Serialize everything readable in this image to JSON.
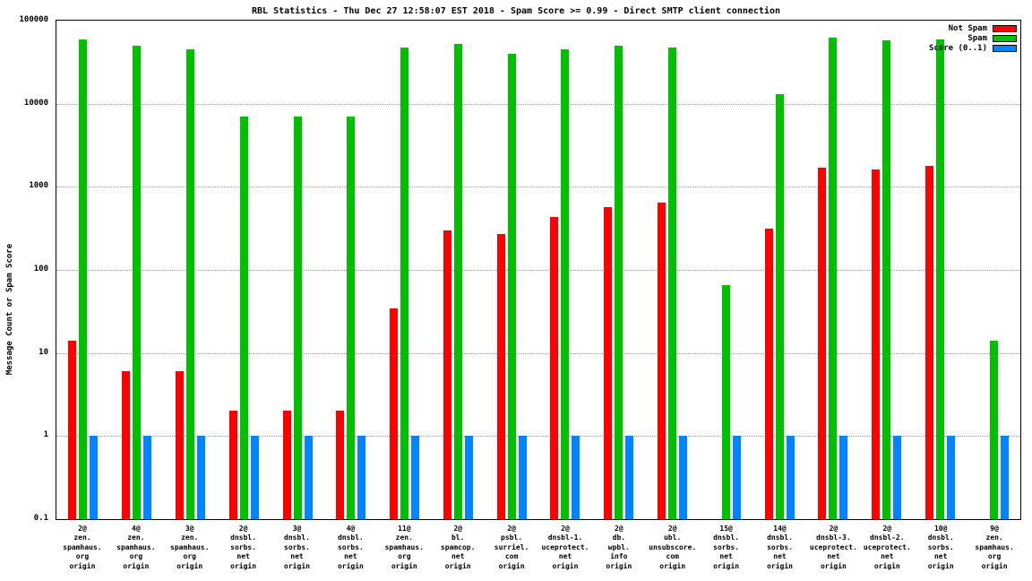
{
  "title": "RBL Statistics - Thu Dec 27 12:58:07 EST 2018 - Spam Score >= 0.99 - Direct SMTP client connection",
  "chart_data": {
    "type": "bar",
    "scale": "log",
    "title": "RBL Statistics - Thu Dec 27 12:58:07 EST 2018 - Spam Score >= 0.99 - Direct SMTP client connection",
    "xlabel": "",
    "ylabel": "Message Count or Spam Score",
    "ylim": [
      0.1,
      100000
    ],
    "ytick_labels": [
      "100000",
      "10000",
      "1000",
      "100",
      "10",
      "1",
      "0.1"
    ],
    "ytick_values": [
      100000,
      10000,
      1000,
      100,
      10,
      1,
      0.1
    ],
    "grid": "horizontal-dotted",
    "legend_position": "top-right",
    "categories": [
      "2@\nzen.\nspamhaus.\norg\norigin",
      "4@\nzen.\nspamhaus.\norg\norigin",
      "3@\nzen.\nspamhaus.\norg\norigin",
      "2@\ndnsbl.\nsorbs.\nnet\norigin",
      "3@\ndnsbl.\nsorbs.\nnet\norigin",
      "4@\ndnsbl.\nsorbs.\nnet\norigin",
      "11@\nzen.\nspamhaus.\norg\norigin",
      "2@\nbl.\nspamcop.\nnet\norigin",
      "2@\npsbl.\nsurriel.\ncom\norigin",
      "2@\ndnsbl-1.\nuceprotect.\nnet\norigin",
      "2@\ndb.\nwpbl.\ninfo\norigin",
      "2@\nubl.\nunsubscore.\ncom\norigin",
      "15@\ndnsbl.\nsorbs.\nnet\norigin",
      "14@\ndnsbl.\nsorbs.\nnet\norigin",
      "2@\ndnsbl-3.\nuceprotect.\nnet\norigin",
      "2@\ndnsbl-2.\nuceprotect.\nnet\norigin",
      "10@\ndnsbl.\nsorbs.\nnet\norigin",
      "9@\nzen.\nspamhaus.\norg\norigin"
    ],
    "series": [
      {
        "name": "Not Spam",
        "color": "#ff0000",
        "values": [
          14,
          6,
          6,
          2,
          2,
          2,
          34,
          300,
          270,
          430,
          570,
          650,
          0,
          310,
          1700,
          1600,
          1800,
          0
        ]
      },
      {
        "name": "Spam",
        "color": "#00c000",
        "values": [
          60000,
          50000,
          45000,
          7000,
          7000,
          7000,
          48000,
          52000,
          40000,
          45000,
          50000,
          48000,
          65,
          13000,
          62000,
          58000,
          60000,
          14
        ]
      },
      {
        "name": "Score (0..1)",
        "color": "#0084ff",
        "values": [
          1,
          1,
          1,
          1,
          1,
          1,
          1,
          1,
          1,
          1,
          1,
          1,
          1,
          1,
          1,
          1,
          1,
          1
        ]
      }
    ]
  }
}
